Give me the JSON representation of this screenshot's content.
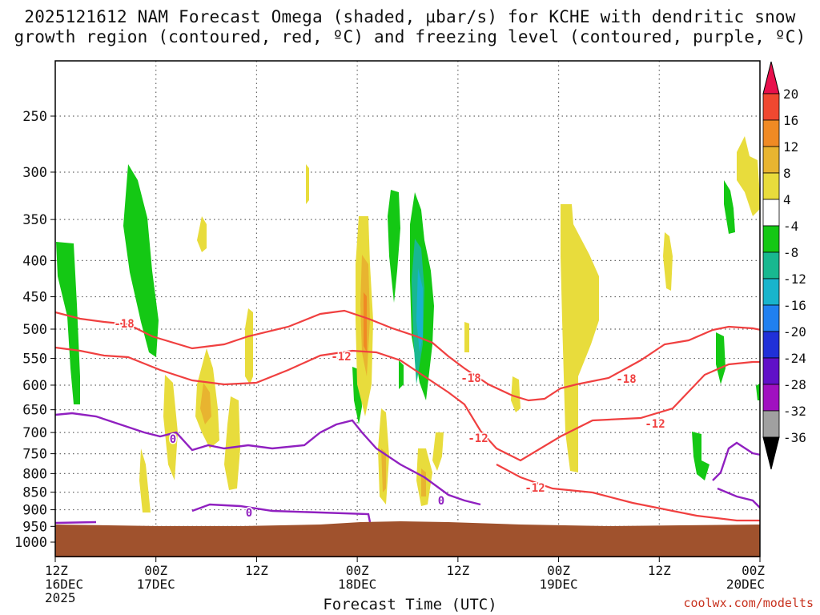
{
  "title": {
    "line1": "2025121612 NAM Forecast Omega (shaded, µbar/s) for KCHE with dendritic snow",
    "line2": "growth region (contoured, red, ºC) and freezing level (contoured, purple, ºC)"
  },
  "credit": "coolwx.com/modelts",
  "chart_data": {
    "type": "time-height cross section",
    "title": "2025121612 NAM Forecast Omega (shaded, µbar/s) for KCHE with dendritic snow growth region (contoured, red, ºC) and freezing level (contoured, purple, ºC)",
    "xlabel": "Forecast Time (UTC)",
    "ylabel": "",
    "xlim_hours": [
      0,
      84
    ],
    "ylim_hPa": [
      1050,
      200
    ],
    "y_ticks": [
      250,
      300,
      350,
      400,
      450,
      500,
      550,
      600,
      650,
      700,
      750,
      800,
      850,
      900,
      950,
      1000
    ],
    "x_ticks": [
      {
        "hour": 0,
        "line1": "12Z",
        "line2": "16DEC",
        "line3": "2025"
      },
      {
        "hour": 12,
        "line1": "00Z",
        "line2": "17DEC",
        "line3": ""
      },
      {
        "hour": 24,
        "line1": "12Z",
        "line2": "",
        "line3": ""
      },
      {
        "hour": 36,
        "line1": "00Z",
        "line2": "18DEC",
        "line3": ""
      },
      {
        "hour": 48,
        "line1": "12Z",
        "line2": "",
        "line3": ""
      },
      {
        "hour": 60,
        "line1": "00Z",
        "line2": "19DEC",
        "line3": ""
      },
      {
        "hour": 72,
        "line1": "12Z",
        "line2": "",
        "line3": ""
      },
      {
        "hour": 84,
        "line1": "00Z",
        "line2": "20DEC",
        "line3": ""
      }
    ],
    "colorbar": {
      "labels": [
        "20",
        "16",
        "12",
        "8",
        "4",
        "-4",
        "-8",
        "-12",
        "-16",
        "-20",
        "-24",
        "-28",
        "-32",
        "-36"
      ],
      "colors": [
        "#e8104c",
        "#f04830",
        "#f08a24",
        "#e8b430",
        "#e8dc3c",
        "#ffffff",
        "#14c814",
        "#18b890",
        "#18b4cc",
        "#2080f0",
        "#2030d8",
        "#6010c8",
        "#a010c0",
        "#a0a0a0",
        "#000000"
      ]
    },
    "contour_labels": {
      "red": [
        "-18",
        "-12",
        "-18",
        "-12",
        "-12",
        "-18",
        "-12"
      ],
      "purple": [
        "0",
        "0",
        "0"
      ]
    },
    "terrain_top_hPa": 955
  }
}
